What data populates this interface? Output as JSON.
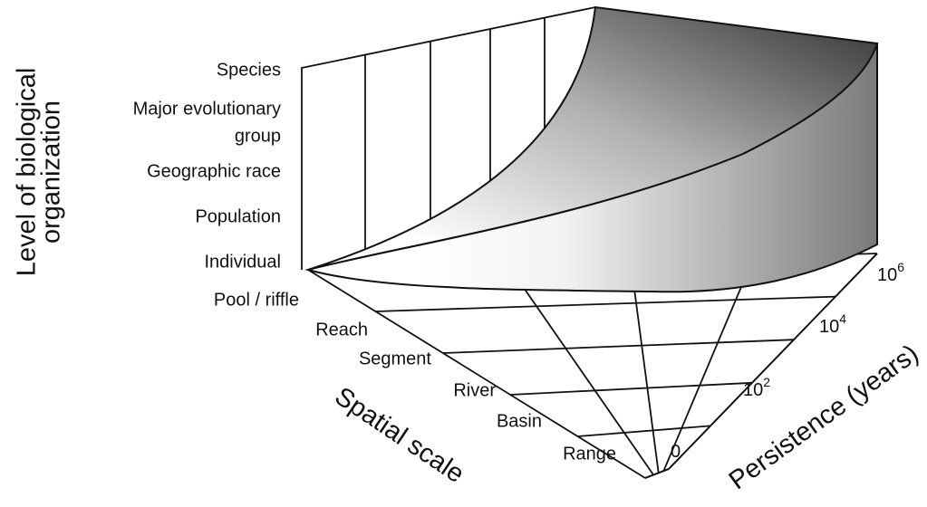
{
  "y_axis": {
    "label": [
      "Level of biological",
      "organization"
    ],
    "levels": [
      [
        "Species"
      ],
      [
        "Major evolutionary",
        "group"
      ],
      [
        "Geographic race"
      ],
      [
        "Population"
      ],
      [
        "Individual"
      ]
    ]
  },
  "spatial_axis": {
    "label": "Spatial scale",
    "levels": [
      "Pool / riffle",
      "Reach",
      "Segment",
      "River",
      "Basin",
      "Range"
    ]
  },
  "persistence_axis": {
    "label": "Persistence (years)",
    "ticks": [
      {
        "base": "0"
      },
      {
        "base": "10",
        "exponent": "2"
      },
      {
        "base": "10",
        "exponent": "4"
      },
      {
        "base": "10",
        "exponent": "6"
      }
    ]
  }
}
